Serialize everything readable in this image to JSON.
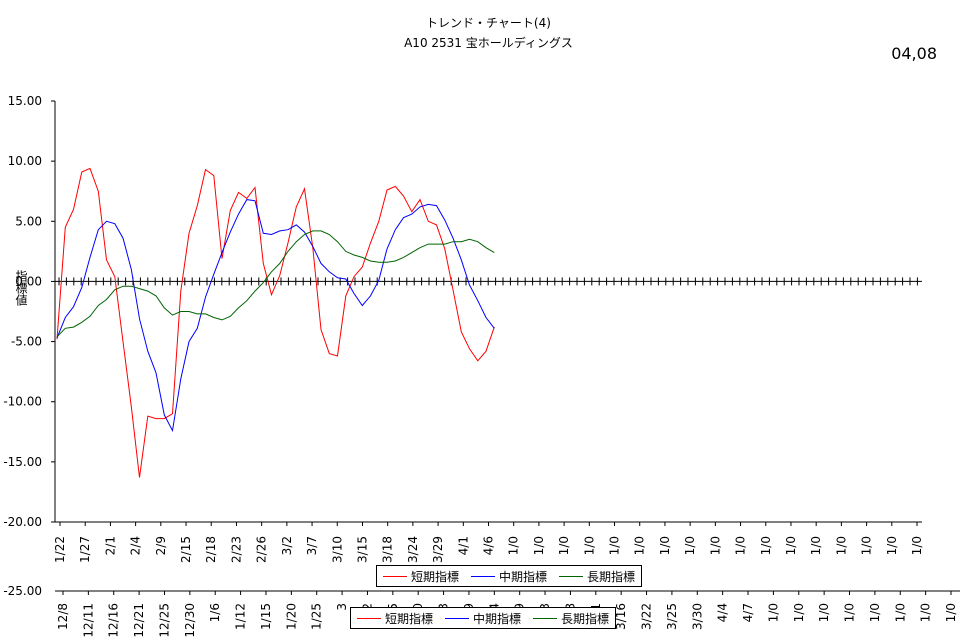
{
  "header": {
    "title_line1": "トレンド・チャート(4)",
    "title_line2": "A10  2531 宝ホールディングス",
    "date_code": "04,08"
  },
  "chart_data": {
    "type": "line",
    "ylabel": "指標値",
    "ylim": [
      -20,
      15
    ],
    "yticks": [
      "15.00",
      "10.00",
      "5.00",
      "0.00",
      "-5.00",
      "-10.00",
      "-15.00",
      "-20.00"
    ],
    "zero_line_style": "dotted",
    "x_tick_labels": [
      "1/22",
      "1/27",
      "2/1",
      "2/4",
      "2/9",
      "2/15",
      "2/18",
      "2/23",
      "2/26",
      "3/2",
      "3/7",
      "3/10",
      "3/15",
      "3/18",
      "3/24",
      "3/29",
      "4/1",
      "4/6",
      "1/0",
      "1/0",
      "1/0",
      "1/0",
      "1/0",
      "1/0",
      "1/0",
      "1/0",
      "1/0",
      "1/0",
      "1/0",
      "1/0",
      "1/0",
      "1/0",
      "1/0",
      "1/0",
      "1/0"
    ],
    "series": [
      {
        "name": "短期指標",
        "color": "#ff0000",
        "values": [
          -4.8,
          4.5,
          6.0,
          9.1,
          9.4,
          7.5,
          1.8,
          0.4,
          -5.0,
          -10.4,
          -16.3,
          -11.2,
          -11.4,
          -11.4,
          -11.0,
          -0.8,
          4.0,
          6.3,
          9.3,
          8.8,
          1.9,
          5.9,
          7.4,
          6.9,
          7.8,
          1.5,
          -1.1,
          0.5,
          3.2,
          6.2,
          7.7,
          2.8,
          -4.0,
          -6.0,
          -6.2,
          -1.2,
          0.4,
          1.2,
          3.2,
          5.0,
          7.6,
          7.9,
          7.1,
          5.8,
          6.8,
          5.0,
          4.7,
          2.7,
          -0.7,
          -4.2,
          -5.6,
          -6.6,
          -5.8,
          -3.8
        ]
      },
      {
        "name": "中期指標",
        "color": "#0000ff",
        "values": [
          -4.7,
          -3.0,
          -2.1,
          -0.5,
          2.0,
          4.3,
          5.0,
          4.8,
          3.6,
          1.0,
          -3.1,
          -5.8,
          -7.6,
          -11.1,
          -12.4,
          -8.1,
          -5.0,
          -3.9,
          -1.3,
          0.6,
          2.4,
          4.1,
          5.6,
          6.8,
          6.7,
          4.0,
          3.9,
          4.2,
          4.3,
          4.7,
          4.1,
          2.9,
          1.5,
          0.8,
          0.3,
          0.2,
          -1.0,
          -2.0,
          -1.2,
          0.1,
          2.7,
          4.3,
          5.3,
          5.6,
          6.2,
          6.4,
          6.3,
          5.1,
          3.6,
          1.8,
          -0.3,
          -1.6,
          -3.0,
          -3.9
        ]
      },
      {
        "name": "長期指標",
        "color": "#006400",
        "values": [
          -4.6,
          -3.9,
          -3.8,
          -3.4,
          -2.9,
          -2.0,
          -1.5,
          -0.7,
          -0.4,
          -0.4,
          -0.6,
          -0.8,
          -1.2,
          -2.2,
          -2.8,
          -2.5,
          -2.5,
          -2.7,
          -2.7,
          -3.0,
          -3.2,
          -2.9,
          -2.2,
          -1.6,
          -0.8,
          -0.1,
          0.8,
          1.5,
          2.5,
          3.3,
          3.9,
          4.2,
          4.2,
          3.9,
          3.3,
          2.5,
          2.2,
          2.0,
          1.7,
          1.6,
          1.6,
          1.7,
          2.0,
          2.4,
          2.8,
          3.1,
          3.1,
          3.1,
          3.3,
          3.3,
          3.5,
          3.3,
          2.8,
          2.4
        ]
      }
    ]
  },
  "ghost_chart": {
    "ylabel_partial": "-25.00",
    "x_tick_labels": [
      "12/8",
      "12/11",
      "12/16",
      "12/21",
      "12/25",
      "12/30",
      "1/6",
      "1/12",
      "1/15",
      "1/20",
      "1/25",
      "3",
      "2",
      "5",
      "0",
      "3",
      "9",
      "4",
      "9",
      "3",
      "8",
      "1",
      "3/16",
      "3/22",
      "3/25",
      "3/30",
      "4/4",
      "4/7",
      "1/0",
      "1/0",
      "1/0",
      "1/0",
      "1/0",
      "1/0",
      "1/0",
      "1/0"
    ]
  }
}
